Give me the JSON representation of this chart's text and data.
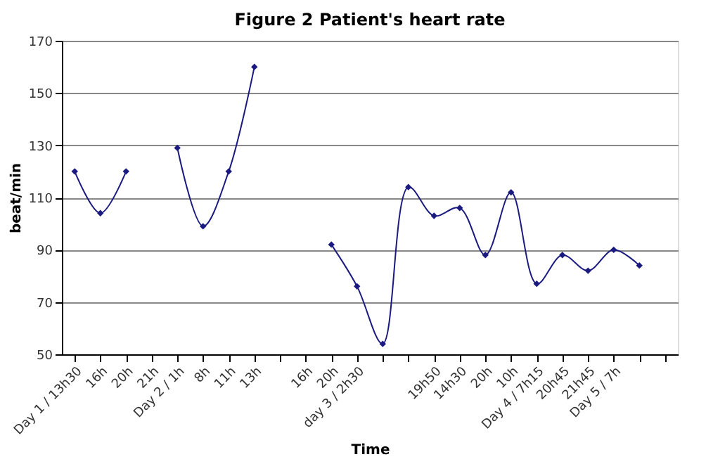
{
  "chart_data": {
    "type": "line",
    "title": "Figure 2 Patient's heart rate",
    "xlabel": "Time",
    "ylabel": "beat/min",
    "categories": [
      "Day 1 / 13h30",
      "16h",
      "20h",
      "21h",
      "Day 2 / 1h",
      "8h",
      "11h",
      "13h",
      null,
      "16h",
      "20h",
      "day 3 / 2h30",
      null,
      null,
      "19h50",
      "14h30",
      "20h",
      "10h",
      "Day 4 / 7h15",
      "20h45",
      "21h45",
      "Day 5 / 7h",
      null,
      null
    ],
    "series": [
      {
        "color": "#1a1a80",
        "values": [
          120,
          104,
          120,
          null,
          129,
          99,
          120,
          160,
          null,
          null,
          92,
          76,
          54,
          114,
          103,
          106,
          88,
          112,
          77,
          88,
          82,
          90,
          84,
          null
        ]
      }
    ],
    "ylim": [
      50,
      170
    ],
    "yticks": [
      50,
      70,
      90,
      110,
      130,
      150,
      170
    ],
    "grid": "y",
    "marker": "diamond",
    "line_style": "solid"
  }
}
